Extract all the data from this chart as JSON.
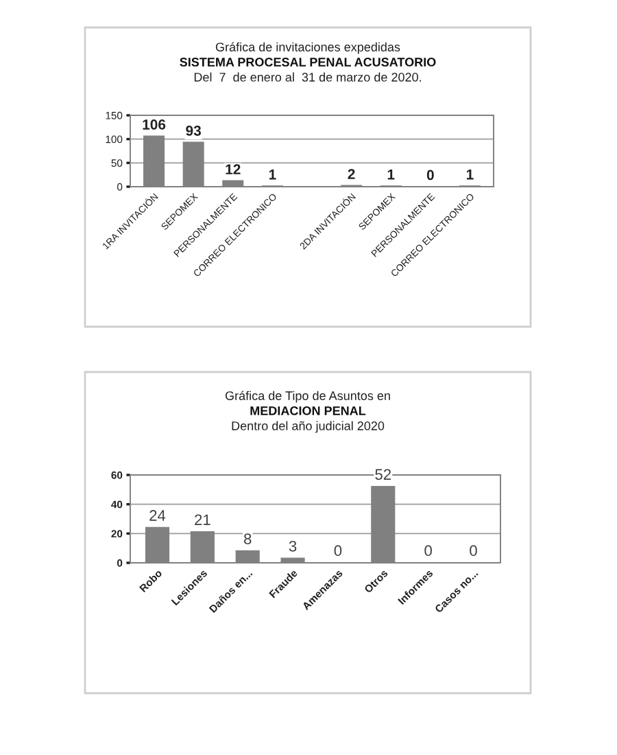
{
  "chart_data": [
    {
      "type": "bar",
      "title": "Gráfica de invitaciones expedidas",
      "subtitle": "SISTEMA PROCESAL PENAL ACUSATORIO",
      "annotations": [
        "Del  7  de enero al  31 de marzo de 2020."
      ],
      "categories": [
        "1RA INVITACIÓN",
        "SEPOMEX",
        "PERSONALMENTE",
        "CORREO ELECTRONICO",
        null,
        "2DA INVITACIÓN",
        "SEPOMEX",
        "PERSONALMENTE",
        "CORREO ELECTRONICO"
      ],
      "values": [
        106,
        93,
        12,
        1,
        null,
        2,
        1,
        0,
        1
      ],
      "color": "#808080",
      "ylim": [
        0,
        150
      ],
      "yticks": [
        0,
        50,
        100,
        150
      ],
      "grid": "y",
      "data_labels": true
    },
    {
      "type": "bar",
      "title": "Gráfica de Tipo de Asuntos en",
      "subtitle": "MEDIACION PENAL",
      "annotations": [
        "Dentro del año judicial 2020"
      ],
      "categories": [
        "Robo",
        "Lesiones",
        "Daños en...",
        "Fraude",
        "Amenazas",
        "Otros",
        "Informes",
        "Casos no..."
      ],
      "values": [
        24,
        21,
        8,
        3,
        0,
        52,
        0,
        0
      ],
      "color": "#808080",
      "ylim": [
        0,
        60
      ],
      "yticks": [
        0,
        20,
        40,
        60
      ],
      "grid": "y",
      "data_labels": true
    }
  ]
}
